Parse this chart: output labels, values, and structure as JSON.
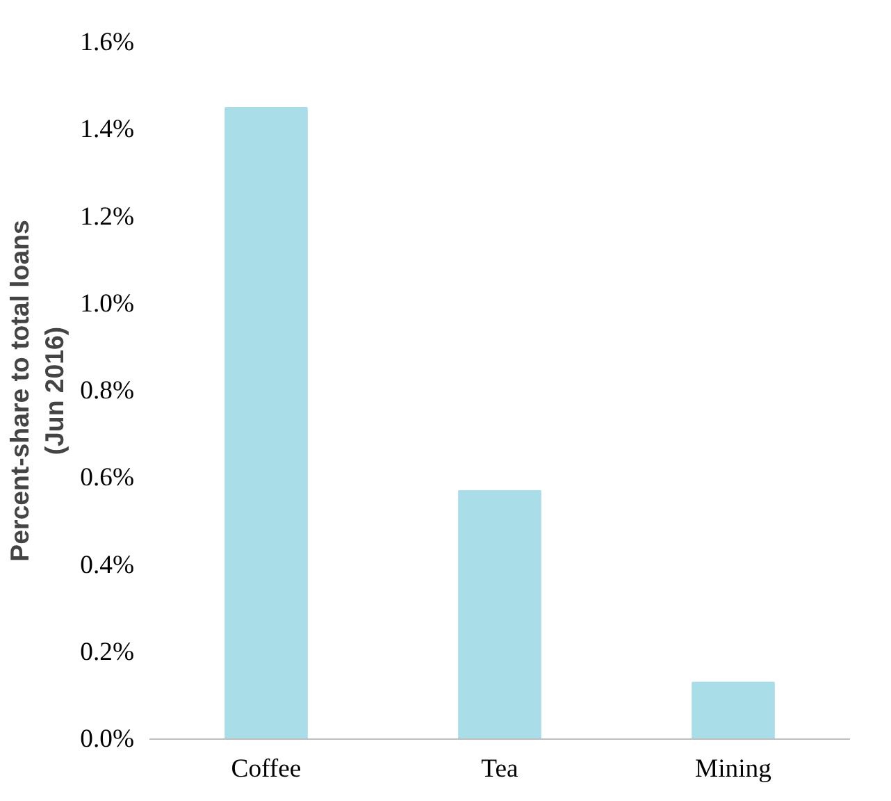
{
  "chart_data": {
    "type": "bar",
    "ylabel": "Percent-share to total loans\n(Jun 2016)",
    "categories": [
      "Coffee",
      "Tea",
      "Mining"
    ],
    "values": [
      1.45,
      0.57,
      0.13
    ],
    "color": "#a9dde8",
    "ylim": [
      0,
      1.6
    ],
    "yticks": [
      {
        "value": 0,
        "label": "0.0%"
      },
      {
        "value": 0.2,
        "label": "0.2%"
      },
      {
        "value": 0.4,
        "label": "0.4%"
      },
      {
        "value": 0.6,
        "label": "0.6%"
      },
      {
        "value": 0.8,
        "label": "0.8%"
      },
      {
        "value": 1.0,
        "label": "1.0%"
      },
      {
        "value": 1.2,
        "label": "1.2%"
      },
      {
        "value": 1.4,
        "label": "1.4%"
      },
      {
        "value": 1.6,
        "label": "1.6%"
      }
    ],
    "grid": false
  }
}
